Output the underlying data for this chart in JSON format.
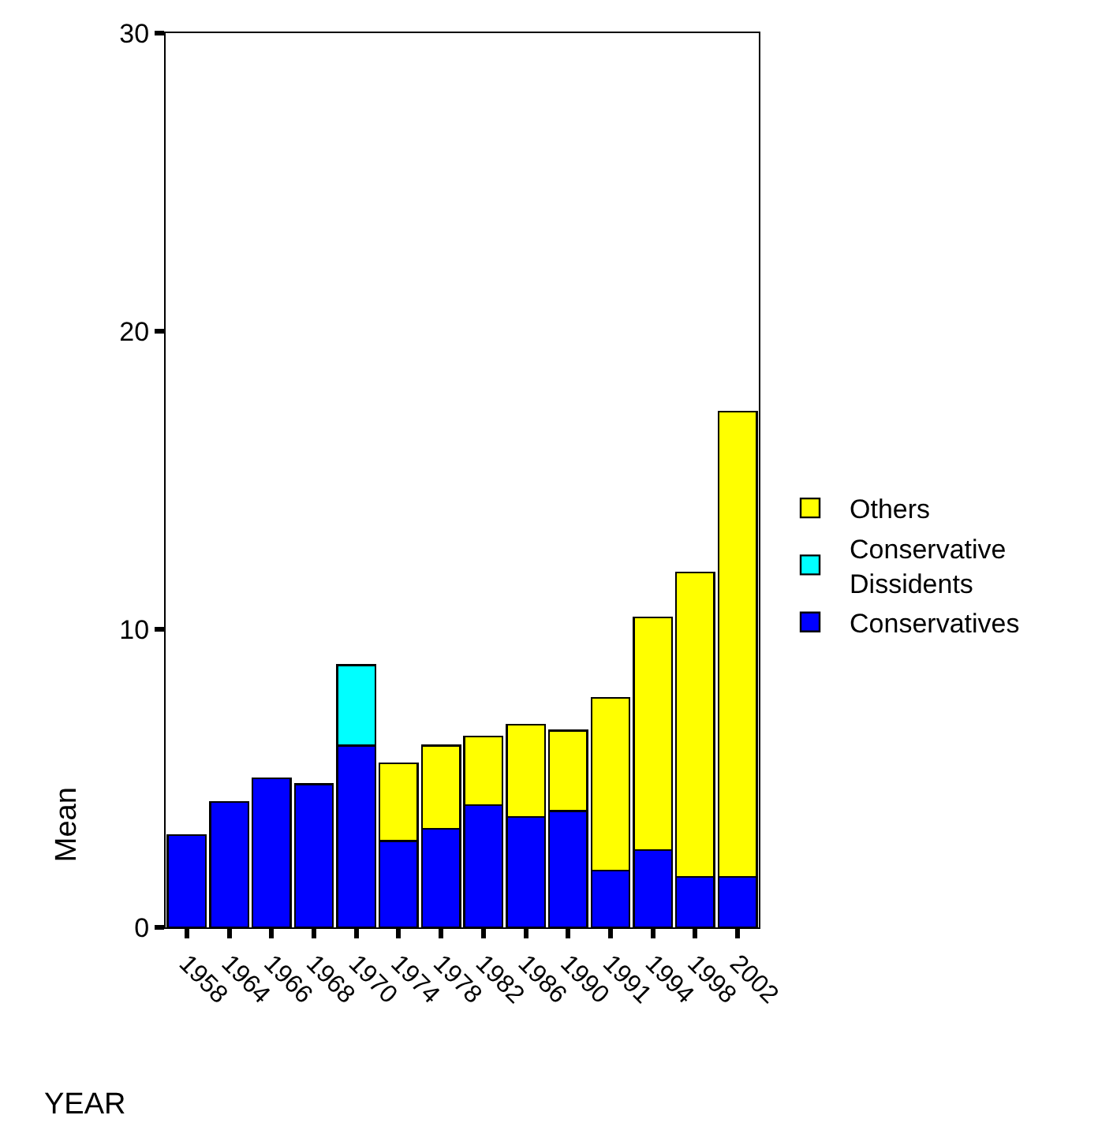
{
  "chart_data": {
    "type": "bar",
    "stacked": true,
    "xlabel": "YEAR",
    "ylabel": "Mean",
    "categories": [
      "1958",
      "1964",
      "1966",
      "1968",
      "1970",
      "1974",
      "1978",
      "1982",
      "1986",
      "1990",
      "1991",
      "1994",
      "1998",
      "2002"
    ],
    "series": [
      {
        "name": "Conservatives",
        "color": "#0000ff",
        "values": [
          3.1,
          4.2,
          5.0,
          4.8,
          6.1,
          2.9,
          3.3,
          4.1,
          3.7,
          3.9,
          1.9,
          2.6,
          1.7,
          1.7
        ]
      },
      {
        "name": "Conservative Dissidents",
        "color": "#00ffff",
        "values": [
          null,
          null,
          null,
          null,
          2.7,
          null,
          null,
          null,
          null,
          null,
          null,
          null,
          null,
          null
        ]
      },
      {
        "name": "Others",
        "color": "#ffff00",
        "values": [
          null,
          null,
          null,
          null,
          null,
          2.6,
          2.8,
          2.3,
          3.1,
          2.7,
          5.8,
          7.8,
          10.2,
          15.6
        ]
      }
    ],
    "ylim": [
      0,
      30
    ],
    "yticks": [
      0,
      10,
      20,
      30
    ],
    "legend": "right"
  }
}
